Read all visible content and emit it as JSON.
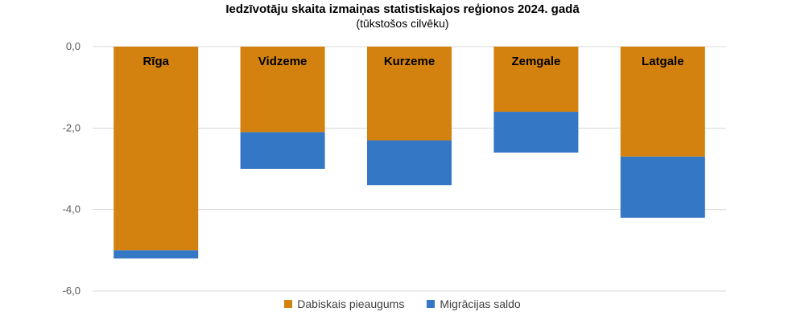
{
  "chart_data": {
    "type": "bar",
    "stacked": true,
    "title": "Iedzīvotāju skaita izmaiņas statistiskajos reģionos 2024. gadā",
    "subtitle": "(tūkstošos cilvēku)",
    "categories": [
      "Rīga",
      "Vidzeme",
      "Kurzeme",
      "Zemgale",
      "Latgale"
    ],
    "series": [
      {
        "name": "Dabiskais pieaugums",
        "color": "#d4820f",
        "values": [
          -5.0,
          -2.1,
          -2.3,
          -1.6,
          -2.7
        ]
      },
      {
        "name": "Migrācijas saldo",
        "color": "#3477c4",
        "values": [
          -0.2,
          -0.9,
          -1.1,
          -1.0,
          -1.5
        ]
      }
    ],
    "y_ticks": [
      "0,0",
      "-2,0",
      "-4,0",
      "-6,0"
    ],
    "ylim": [
      -6,
      0
    ],
    "grid": true,
    "legend_position": "bottom"
  }
}
